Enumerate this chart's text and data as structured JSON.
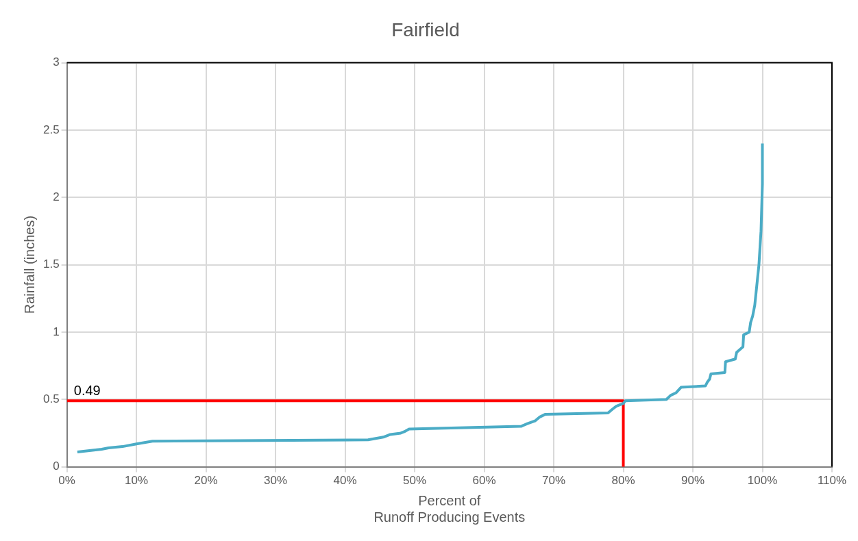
{
  "chart_data": {
    "type": "line",
    "title": "Fairfield",
    "xlabel": "Percent of\nRunoff Producing Events",
    "ylabel": "Rainfall (inches)",
    "xlim": [
      0,
      110
    ],
    "xticks": [
      {
        "value": 0,
        "label": "0%"
      },
      {
        "value": 10,
        "label": "10%"
      },
      {
        "value": 20,
        "label": "20%"
      },
      {
        "value": 30,
        "label": "30%"
      },
      {
        "value": 40,
        "label": "40%"
      },
      {
        "value": 50,
        "label": "50%"
      },
      {
        "value": 60,
        "label": "60%"
      },
      {
        "value": 70,
        "label": "70%"
      },
      {
        "value": 80,
        "label": "80%"
      },
      {
        "value": 90,
        "label": "90%"
      },
      {
        "value": 100,
        "label": "100%"
      },
      {
        "value": 110,
        "label": "110%"
      }
    ],
    "ylim": [
      0,
      3
    ],
    "yticks": [
      0,
      0.5,
      1,
      1.5,
      2,
      2.5,
      3
    ],
    "grid": true,
    "legend": false,
    "marker": "none",
    "line_style": "solid",
    "series": [
      {
        "color": "#4bacc6",
        "x": [
          1.5,
          5,
          6,
          8,
          10,
          12.3,
          43.3,
          45.5,
          46.5,
          48,
          48.5,
          49.2,
          65.3,
          66.2,
          67.3,
          68,
          68.8,
          77.8,
          78.5,
          79,
          80,
          80.3,
          86.2,
          86.8,
          87.6,
          88.3,
          91.8,
          92.1,
          92.4,
          92.6,
          94.6,
          94.7,
          96.1,
          96.3,
          97.2,
          97.3,
          98.1,
          98.3,
          98.6,
          98.9,
          99.1,
          99.5,
          99.8,
          100,
          100
        ],
        "values": [
          0.11,
          0.13,
          0.14,
          0.15,
          0.17,
          0.19,
          0.2,
          0.22,
          0.24,
          0.25,
          0.26,
          0.28,
          0.3,
          0.32,
          0.34,
          0.37,
          0.39,
          0.4,
          0.43,
          0.45,
          0.47,
          0.49,
          0.5,
          0.53,
          0.55,
          0.59,
          0.6,
          0.63,
          0.65,
          0.69,
          0.7,
          0.78,
          0.8,
          0.85,
          0.89,
          0.98,
          1,
          1.07,
          1.12,
          1.2,
          1.3,
          1.5,
          1.75,
          2.1,
          2.4
        ]
      },
      {
        "color": "#ff0000",
        "x": [
          0,
          80,
          80
        ],
        "values": [
          0.49,
          0.49,
          0
        ]
      }
    ],
    "annotations": [
      {
        "text": "0.49",
        "x": 1,
        "y": 0.49
      }
    ]
  }
}
